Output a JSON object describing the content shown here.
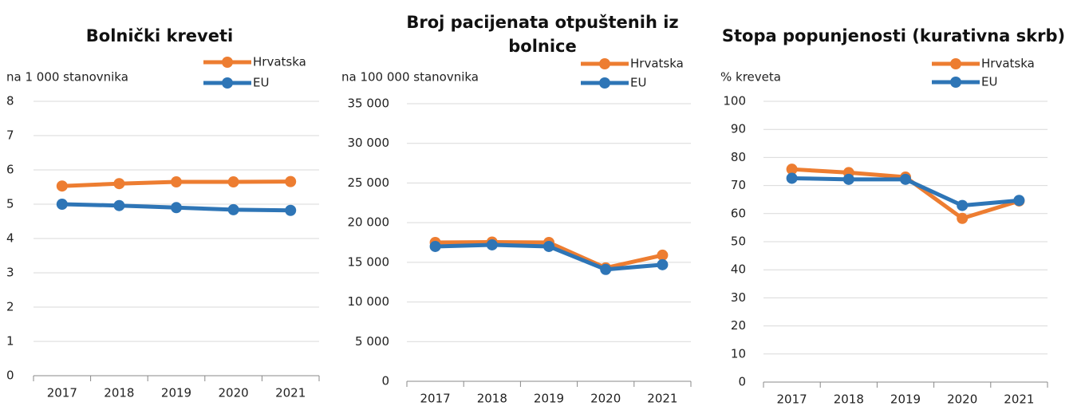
{
  "chart_data": [
    {
      "type": "line",
      "title": "Bolnički kreveti",
      "y_label": "na 1 000 stanovnika",
      "categories": [
        "2017",
        "2018",
        "2019",
        "2020",
        "2021"
      ],
      "series": [
        {
          "name": "Hrvatska",
          "color": "#ed7d31",
          "values": [
            5.53,
            5.6,
            5.65,
            5.65,
            5.66
          ]
        },
        {
          "name": "EU",
          "color": "#2e75b6",
          "values": [
            5.0,
            4.96,
            4.9,
            4.84,
            4.82
          ]
        }
      ],
      "ylim": [
        0,
        8
      ],
      "yticks": [
        0,
        1,
        2,
        3,
        4,
        5,
        6,
        7,
        8
      ],
      "grid": true,
      "legend": "top-right"
    },
    {
      "type": "line",
      "title": "Broj pacijenata otpuštenih iz bolnice",
      "y_label": "na 100 000 stanovnika",
      "categories": [
        "2017",
        "2018",
        "2019",
        "2020",
        "2021"
      ],
      "series": [
        {
          "name": "Hrvatska",
          "color": "#ed7d31",
          "values": [
            17500,
            17550,
            17500,
            14300,
            15900
          ]
        },
        {
          "name": "EU",
          "color": "#2e75b6",
          "values": [
            17000,
            17200,
            17000,
            14100,
            14700
          ]
        }
      ],
      "ylim": [
        0,
        35000
      ],
      "yticks": [
        0,
        {
          "value": 5000,
          "label": "5 000"
        },
        {
          "value": 10000,
          "label": "10 000"
        },
        {
          "value": 15000,
          "label": "15 000"
        },
        {
          "value": 20000,
          "label": "20 000"
        },
        {
          "value": 25000,
          "label": "25 000"
        },
        {
          "value": 30000,
          "label": "30 000"
        },
        {
          "value": 35000,
          "label": "35 000"
        }
      ],
      "grid": true,
      "legend": "top-right"
    },
    {
      "type": "line",
      "title": "Stopa popunjenosti (kurativna skrb)",
      "y_label": "% kreveta",
      "categories": [
        "2017",
        "2018",
        "2019",
        "2020",
        "2021"
      ],
      "series": [
        {
          "name": "Hrvatska",
          "color": "#ed7d31",
          "values": [
            75.8,
            74.6,
            73.0,
            58.3,
            64.5
          ]
        },
        {
          "name": "EU",
          "color": "#2e75b6",
          "values": [
            72.6,
            72.2,
            72.2,
            62.9,
            64.7
          ]
        }
      ],
      "ylim": [
        0,
        100
      ],
      "yticks": [
        0,
        10,
        20,
        30,
        40,
        50,
        60,
        70,
        80,
        90,
        100
      ],
      "grid": true,
      "legend": "top-right"
    }
  ]
}
